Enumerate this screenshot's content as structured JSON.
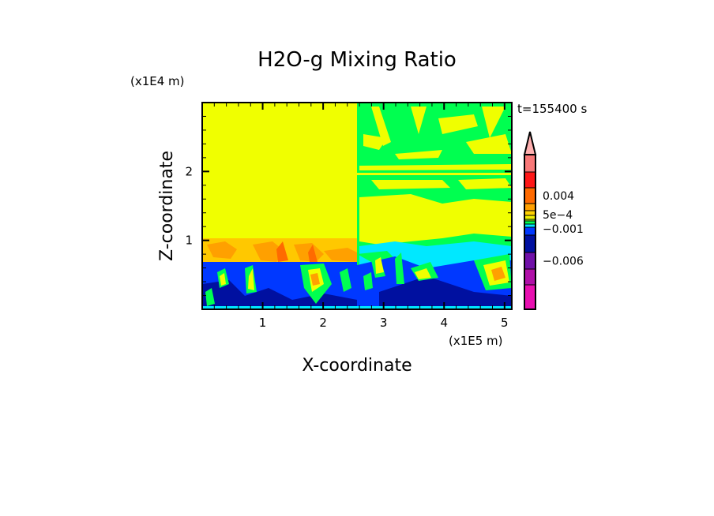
{
  "chart_data": {
    "type": "heatmap",
    "title": "H2O-g Mixing Ratio",
    "xlabel": "X-coordinate",
    "ylabel": "Z-coordinate",
    "x_unit_label": "(x1E5 m)",
    "y_unit_label": "(x1E4 m)",
    "time_label": "t=155400 s",
    "xlim": [
      0,
      5.12
    ],
    "ylim": [
      0,
      3.0
    ],
    "x_ticks": [
      1,
      2,
      3,
      4,
      5
    ],
    "y_ticks": [
      1,
      2
    ],
    "grid": false,
    "colorbar": {
      "labels": [
        {
          "text": "0.004",
          "level": 2
        },
        {
          "text": "5e-4",
          "level": 5
        },
        {
          "text": "-0.001",
          "level": 8
        },
        {
          "text": "-0.006",
          "level": 11
        }
      ],
      "colors": [
        "#f87878",
        "#ff1818",
        "#ff6a00",
        "#ffa000",
        "#ffd000",
        "#f0f000",
        "#a0ff20",
        "#00ff50",
        "#00e8ff",
        "#0038ff",
        "#0010a0",
        "#7010a8",
        "#b010a8",
        "#e810b0"
      ],
      "overflow_color": "#ffb0b0"
    }
  }
}
